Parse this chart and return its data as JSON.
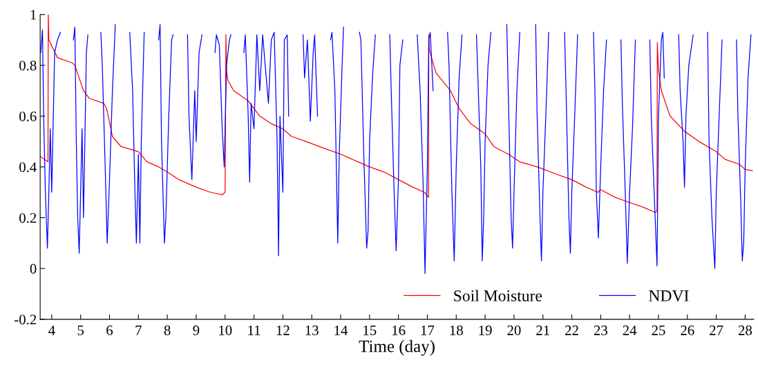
{
  "chart_data": {
    "type": "line",
    "xlabel": "Time (day)",
    "xlim": [
      3.6,
      28.3
    ],
    "xticks": [
      4,
      5,
      6,
      7,
      8,
      9,
      10,
      11,
      12,
      13,
      14,
      15,
      16,
      17,
      18,
      19,
      20,
      21,
      22,
      23,
      24,
      25,
      26,
      27,
      28
    ],
    "ylim": [
      -0.2,
      1
    ],
    "yticks": [
      -0.2,
      0,
      0.2,
      0.4,
      0.6,
      0.8,
      1
    ],
    "legend": "bottom right",
    "grid": false,
    "marker": "none",
    "line_style": "solid",
    "series": [
      {
        "name": "Soil Moisture",
        "color": "#ff0000",
        "x": [
          3.62,
          3.87,
          3.88,
          3.9,
          4.2,
          4.7,
          4.8,
          5.1,
          5.3,
          5.8,
          5.9,
          6.1,
          6.4,
          7.0,
          7.3,
          7.7,
          8.0,
          8.4,
          9.0,
          9.5,
          9.9,
          10.0,
          10.03,
          10.05,
          10.1,
          10.3,
          10.8,
          11.2,
          11.6,
          12.0,
          12.3,
          12.8,
          13.5,
          14.0,
          14.6,
          15.0,
          15.5,
          16.0,
          16.5,
          16.9,
          17.04,
          17.05,
          17.07,
          17.3,
          17.8,
          18.1,
          18.5,
          19.0,
          19.3,
          19.8,
          20.2,
          20.8,
          21.5,
          22.0,
          22.5,
          22.9,
          23.0,
          23.5,
          24.0,
          24.5,
          24.9,
          24.95,
          24.96,
          25.0,
          25.1,
          25.4,
          25.9,
          26.4,
          27.0,
          27.3,
          27.8,
          28.0,
          28.25
        ],
        "values": [
          0.44,
          0.42,
          1.0,
          0.9,
          0.83,
          0.81,
          0.8,
          0.7,
          0.67,
          0.65,
          0.63,
          0.52,
          0.48,
          0.46,
          0.42,
          0.4,
          0.38,
          0.35,
          0.32,
          0.3,
          0.29,
          0.3,
          0.92,
          0.78,
          0.74,
          0.7,
          0.66,
          0.6,
          0.57,
          0.55,
          0.52,
          0.5,
          0.47,
          0.45,
          0.42,
          0.4,
          0.38,
          0.35,
          0.32,
          0.3,
          0.28,
          0.92,
          0.86,
          0.77,
          0.7,
          0.63,
          0.57,
          0.53,
          0.48,
          0.45,
          0.42,
          0.4,
          0.37,
          0.35,
          0.32,
          0.3,
          0.31,
          0.28,
          0.26,
          0.24,
          0.22,
          0.23,
          0.89,
          0.78,
          0.7,
          0.6,
          0.54,
          0.5,
          0.46,
          0.43,
          0.41,
          0.39,
          0.385
        ]
      },
      {
        "name": "NDVI",
        "color": "#0000ff",
        "x": [
          3.62,
          3.68,
          3.72,
          3.78,
          3.85,
          3.9,
          3.95,
          4.0,
          4.1,
          4.2,
          4.3,
          4.5,
          4.75,
          4.8,
          4.85,
          4.9,
          4.95,
          5.0,
          5.05,
          5.1,
          5.2,
          5.25,
          5.5,
          5.7,
          5.75,
          5.85,
          5.92,
          6.0,
          6.1,
          6.2,
          6.5,
          6.7,
          6.8,
          6.88,
          6.93,
          7.0,
          7.05,
          7.1,
          7.2,
          7.5,
          7.7,
          7.75,
          7.8,
          7.9,
          7.95,
          8.05,
          8.15,
          8.2,
          8.5,
          8.7,
          8.75,
          8.85,
          8.95,
          9.0,
          9.1,
          9.2,
          9.4,
          9.65,
          9.7,
          9.8,
          9.9,
          9.97,
          10.05,
          10.15,
          10.2,
          10.4,
          10.65,
          10.7,
          10.8,
          10.85,
          10.9,
          11.0,
          11.1,
          11.2,
          11.3,
          11.5,
          11.6,
          11.7,
          11.8,
          11.85,
          11.9,
          12.0,
          12.05,
          12.15,
          12.2,
          12.5,
          12.7,
          12.75,
          12.85,
          12.95,
          13.05,
          13.1,
          13.2,
          13.4,
          13.65,
          13.7,
          13.8,
          13.9,
          13.95,
          14.05,
          14.1,
          14.4,
          14.65,
          14.7,
          14.8,
          14.9,
          14.95,
          15.0,
          15.1,
          15.2,
          15.5,
          15.7,
          15.75,
          15.85,
          15.92,
          16.0,
          16.05,
          16.15,
          16.4,
          16.65,
          16.75,
          16.85,
          16.92,
          17.0,
          17.05,
          17.1,
          17.2,
          17.5,
          17.7,
          17.75,
          17.85,
          17.93,
          18.0,
          18.1,
          18.2,
          18.5,
          18.7,
          18.75,
          18.85,
          18.9,
          18.95,
          19.0,
          19.1,
          19.2,
          19.5,
          19.75,
          19.8,
          19.9,
          19.95,
          20.0,
          20.1,
          20.2,
          20.5,
          20.75,
          20.8,
          20.9,
          20.95,
          21.0,
          21.1,
          21.2,
          21.5,
          21.75,
          21.8,
          21.9,
          21.95,
          22.0,
          22.1,
          22.2,
          22.5,
          22.75,
          22.8,
          22.85,
          22.92,
          23.0,
          23.1,
          23.2,
          23.5,
          23.7,
          23.75,
          23.85,
          23.92,
          24.0,
          24.1,
          24.2,
          24.5,
          24.7,
          24.75,
          24.85,
          24.95,
          25.0,
          25.1,
          25.15,
          25.2,
          25.5,
          25.7,
          25.75,
          25.85,
          25.9,
          25.95,
          26.05,
          26.2,
          26.5,
          26.7,
          26.75,
          26.85,
          26.95,
          27.0,
          27.1,
          27.2,
          27.5,
          27.7,
          27.75,
          27.85,
          27.9,
          27.95,
          28.0,
          28.1,
          28.2
        ],
        "values": [
          0.85,
          0.94,
          0.6,
          0.3,
          0.08,
          0.3,
          0.55,
          0.3,
          0.85,
          0.9,
          0.93,
          null,
          0.9,
          0.95,
          0.5,
          0.2,
          0.06,
          0.3,
          0.55,
          0.2,
          0.85,
          0.92,
          null,
          0.93,
          0.8,
          0.4,
          0.1,
          0.35,
          0.7,
          0.96,
          null,
          0.93,
          0.7,
          0.3,
          0.1,
          0.45,
          0.1,
          0.5,
          0.93,
          null,
          0.9,
          0.96,
          0.5,
          0.1,
          0.2,
          0.6,
          0.9,
          0.92,
          null,
          0.92,
          0.6,
          0.35,
          0.7,
          0.5,
          0.85,
          0.92,
          null,
          0.85,
          0.92,
          0.88,
          0.55,
          0.4,
          0.8,
          0.9,
          0.92,
          null,
          0.85,
          0.92,
          0.6,
          0.34,
          0.65,
          0.55,
          0.92,
          0.7,
          0.92,
          0.65,
          0.9,
          0.93,
          0.5,
          0.05,
          0.6,
          0.3,
          0.9,
          0.92,
          0.6,
          null,
          0.92,
          0.75,
          0.9,
          0.58,
          0.85,
          0.92,
          0.6,
          null,
          0.9,
          0.93,
          0.7,
          0.1,
          0.45,
          0.8,
          0.95,
          null,
          0.93,
          0.9,
          0.45,
          0.08,
          0.15,
          0.5,
          0.75,
          0.92,
          null,
          0.92,
          0.7,
          0.3,
          0.07,
          0.35,
          0.8,
          0.9,
          null,
          0.92,
          0.7,
          0.35,
          -0.02,
          0.4,
          0.9,
          0.93,
          0.7,
          null,
          0.93,
          0.8,
          0.3,
          0.03,
          0.4,
          0.75,
          0.92,
          null,
          0.92,
          0.75,
          0.4,
          0.03,
          0.2,
          0.5,
          0.8,
          0.93,
          null,
          0.96,
          0.7,
          0.2,
          0.08,
          0.3,
          0.7,
          0.93,
          null,
          0.96,
          0.6,
          0.2,
          0.03,
          0.3,
          0.6,
          0.93,
          null,
          0.93,
          0.7,
          0.2,
          0.06,
          0.3,
          0.6,
          0.92,
          null,
          0.93,
          0.7,
          0.3,
          0.12,
          0.4,
          0.7,
          0.9,
          null,
          0.9,
          0.65,
          0.3,
          0.02,
          0.3,
          0.55,
          0.9,
          null,
          0.9,
          0.6,
          0.3,
          0.01,
          0.6,
          0.9,
          0.93,
          0.75,
          null,
          0.92,
          0.7,
          0.5,
          0.32,
          0.6,
          0.8,
          0.92,
          null,
          0.93,
          0.5,
          0.2,
          0.0,
          0.3,
          0.6,
          0.9,
          null,
          0.9,
          0.6,
          0.25,
          0.03,
          0.1,
          0.4,
          0.75,
          0.92
        ]
      }
    ]
  }
}
